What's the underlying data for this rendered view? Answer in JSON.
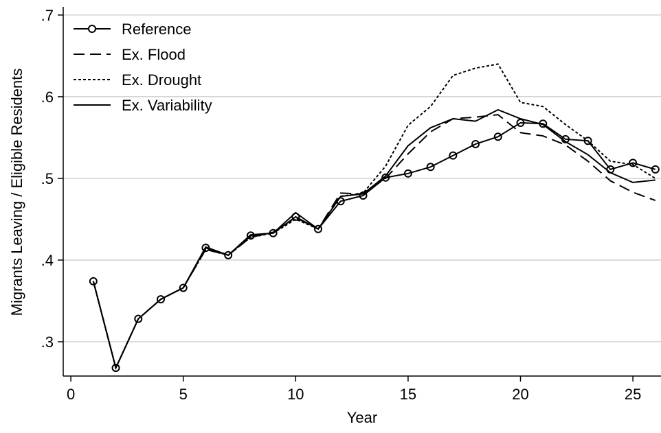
{
  "chart_data": {
    "type": "line",
    "x_label": "Year",
    "y_label": "Migrants Leaving / Eligible Residents",
    "x": [
      1,
      2,
      3,
      4,
      5,
      6,
      7,
      8,
      9,
      10,
      11,
      12,
      13,
      14,
      15,
      16,
      17,
      18,
      19,
      20,
      21,
      22,
      23,
      24,
      25,
      26
    ],
    "series": [
      {
        "name": "Reference",
        "color": "#000000",
        "dash": "none",
        "marker": "circle",
        "values": [
          0.374,
          0.268,
          0.328,
          0.352,
          0.366,
          0.415,
          0.406,
          0.43,
          0.433,
          0.453,
          0.438,
          0.472,
          0.479,
          0.501,
          0.506,
          0.514,
          0.528,
          0.542,
          0.551,
          0.568,
          0.567,
          0.548,
          0.546,
          0.511,
          0.519,
          0.511
        ]
      },
      {
        "name": "Ex. Flood",
        "color": "#000000",
        "dash": "16 8",
        "values": [
          0.374,
          0.268,
          0.328,
          0.352,
          0.366,
          0.413,
          0.406,
          0.428,
          0.434,
          0.452,
          0.438,
          0.482,
          0.481,
          0.5,
          0.53,
          0.557,
          0.573,
          0.575,
          0.578,
          0.556,
          0.552,
          0.541,
          0.521,
          0.497,
          0.483,
          0.473
        ]
      },
      {
        "name": "Ex. Drought",
        "color": "#000000",
        "dash": "4 3",
        "values": [
          0.374,
          0.268,
          0.328,
          0.352,
          0.366,
          0.413,
          0.406,
          0.428,
          0.433,
          0.45,
          0.438,
          0.478,
          0.482,
          0.515,
          0.565,
          0.588,
          0.626,
          0.635,
          0.64,
          0.593,
          0.588,
          0.566,
          0.546,
          0.521,
          0.517,
          0.5
        ]
      },
      {
        "name": "Ex. Variability",
        "color": "#000000",
        "dash": "none",
        "values": [
          0.374,
          0.268,
          0.328,
          0.352,
          0.366,
          0.416,
          0.406,
          0.431,
          0.433,
          0.458,
          0.438,
          0.478,
          0.481,
          0.503,
          0.54,
          0.562,
          0.573,
          0.57,
          0.584,
          0.573,
          0.566,
          0.545,
          0.529,
          0.507,
          0.495,
          0.498
        ]
      }
    ],
    "xlim": [
      -0.34,
      26.25
    ],
    "ylim": [
      0.258,
      0.71
    ],
    "xticks": [
      0,
      5,
      10,
      15,
      20,
      25
    ],
    "yticks": [
      {
        "value": 0.3,
        "label": ".3"
      },
      {
        "value": 0.4,
        "label": ".4"
      },
      {
        "value": 0.5,
        "label": ".5"
      },
      {
        "value": 0.6,
        "label": ".6"
      },
      {
        "value": 0.7,
        "label": ".7"
      }
    ],
    "grid": true,
    "legend": "top-left"
  }
}
